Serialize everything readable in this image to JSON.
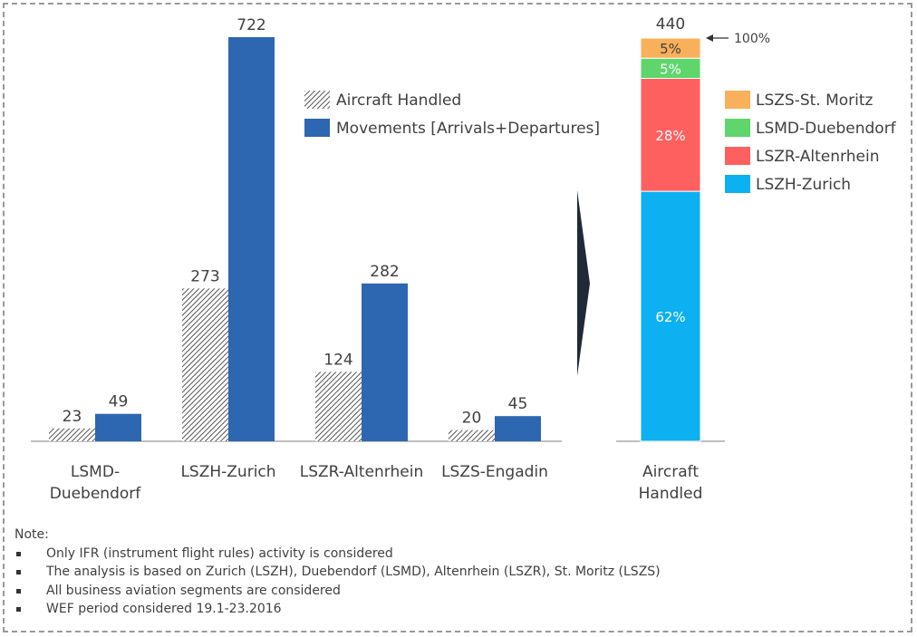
{
  "chart_data": [
    {
      "type": "bar",
      "categories": [
        "LSMD-\nDuebendorf",
        "LSZH-Zurich",
        "LSZR-Altenrhein",
        "LSZS-Engadin"
      ],
      "series": [
        {
          "name": "Aircraft Handled",
          "values": [
            23,
            273,
            124,
            20
          ],
          "pattern": "hatch"
        },
        {
          "name": "Movements [Arrivals+Departures]",
          "values": [
            49,
            722,
            282,
            45
          ],
          "color": "#2e67b1"
        }
      ],
      "ylim": [
        0,
        722
      ],
      "grid": false,
      "legend": "top-right"
    },
    {
      "type": "bar",
      "stacked": true,
      "categories": [
        "Aircraft\nHandled"
      ],
      "total": 440,
      "total_annotation": "100%",
      "segments": [
        {
          "name": "LSZH-Zurich",
          "value": 62,
          "label": "62%",
          "color": "#0db0f0"
        },
        {
          "name": "LSZR-Altenrhein",
          "value": 28,
          "label": "28%",
          "color": "#fe5f5f"
        },
        {
          "name": "LSMD-Duebendorf",
          "value": 5,
          "label": "5%",
          "color": "#5ed66c"
        },
        {
          "name": "LSZS-St. Moritz",
          "value": 5,
          "label": "5%",
          "color": "#f9b05a"
        }
      ],
      "legend_order": [
        "LSZS-St. Moritz",
        "LSMD-Duebendorf",
        "LSZR-Altenrhein",
        "LSZH-Zurich"
      ],
      "legend": "right"
    }
  ],
  "notes": {
    "title": "Note:",
    "items": [
      "Only IFR (instrument flight rules) activity is considered",
      "The analysis is based on Zurich (LSZH), Duebendorf (LSMD), Altenrhein (LSZR), St. Moritz (LSZS)",
      "All business aviation segments are considered",
      "WEF period considered 19.1-23.2016"
    ]
  }
}
